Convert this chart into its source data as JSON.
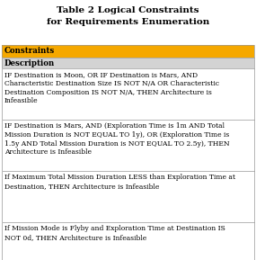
{
  "title": "Table 2 Logical Constraints\nfor Requirements Enumeration",
  "title_fontsize": 7.5,
  "header1": "Constraints",
  "header1_bg": "#F5A800",
  "header2": "Description",
  "header2_bg": "#D3D3D3",
  "rows": [
    "IF Destination is Moon, OR IF Destination is Mars, AND\nCharacteristic Destination Size IS NOT N/A OR Characteristic\nDestination Composition IS NOT N/A, THEN Architecture is\nInfeasible",
    "IF Destination is Mars, AND (Exploration Time is 1m AND Total\nMission Duration is NOT EQUAL TO 1y), OR (Exploration Time is\n1.5y AND Total Mission Duration is NOT EQUAL TO 2.5y), THEN\nArchitecture is Infeasible",
    "If Maximum Total Mission Duration LESS than Exploration Time at\nDestination, THEN Architecture is Infeasible",
    "If Mission Mode is Flyby and Exploration Time at Destination IS\nNOT 0d, THEN Architecture is Infeasible"
  ],
  "row_bg": "#FFFFFF",
  "border_color": "#999999",
  "text_color": "#000000",
  "font_family": "DejaVu Serif",
  "row_fontsize": 5.5,
  "header_fontsize": 6.2,
  "fig_bg": "#FFFFFF",
  "fig_w": 2.85,
  "fig_h": 2.89,
  "dpi": 100
}
